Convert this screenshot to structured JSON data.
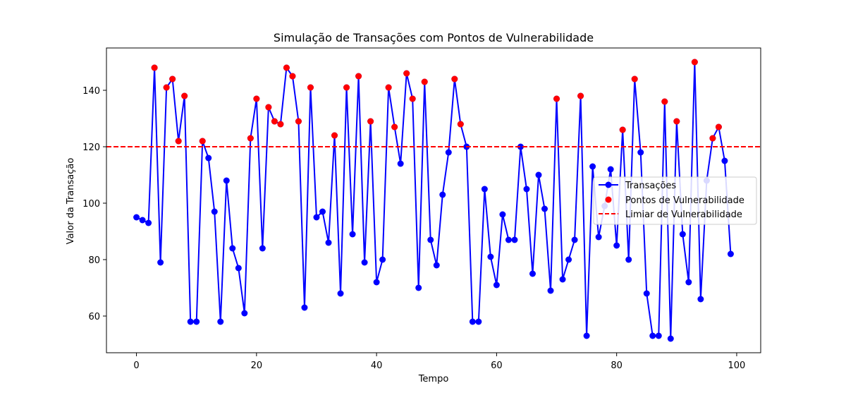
{
  "chart_data": {
    "type": "line",
    "title": "Simulação de Transações com Pontos de Vulnerabilidade",
    "xlabel": "Tempo",
    "ylabel": "Valor da Transação",
    "xlim": [
      -5,
      104
    ],
    "ylim": [
      47,
      155
    ],
    "x_ticks": [
      0,
      20,
      40,
      60,
      80,
      100
    ],
    "y_ticks": [
      60,
      80,
      100,
      120,
      140
    ],
    "grid": false,
    "legend_position": "center-right",
    "threshold": 120,
    "colors": {
      "line": "#0000ff",
      "points": "#ff0000",
      "threshold": "#ff0000"
    },
    "x": [
      0,
      1,
      2,
      3,
      4,
      5,
      6,
      7,
      8,
      9,
      10,
      11,
      12,
      13,
      14,
      15,
      16,
      17,
      18,
      19,
      20,
      21,
      22,
      23,
      24,
      25,
      26,
      27,
      28,
      29,
      30,
      31,
      32,
      33,
      34,
      35,
      36,
      37,
      38,
      39,
      40,
      41,
      42,
      43,
      44,
      45,
      46,
      47,
      48,
      49,
      50,
      51,
      52,
      53,
      54,
      55,
      56,
      57,
      58,
      59,
      60,
      61,
      62,
      63,
      64,
      65,
      66,
      67,
      68,
      69,
      70,
      71,
      72,
      73,
      74,
      75,
      76,
      77,
      78,
      79,
      80,
      81,
      82,
      83,
      84,
      85,
      86,
      87,
      88,
      89,
      90,
      91,
      92,
      93,
      94,
      95,
      96,
      97,
      98,
      99
    ],
    "series": [
      {
        "name": "Transações",
        "style": "line-marker",
        "values": [
          95,
          94,
          93,
          148,
          79,
          141,
          144,
          122,
          138,
          58,
          58,
          122,
          116,
          97,
          58,
          108,
          84,
          77,
          61,
          123,
          137,
          84,
          134,
          129,
          128,
          148,
          145,
          129,
          63,
          141,
          95,
          97,
          86,
          124,
          68,
          141,
          89,
          145,
          79,
          129,
          72,
          80,
          141,
          127,
          114,
          146,
          137,
          70,
          143,
          87,
          78,
          103,
          118,
          144,
          128,
          120,
          58,
          58,
          105,
          81,
          71,
          96,
          87,
          87,
          120,
          105,
          75,
          110,
          98,
          69,
          137,
          73,
          80,
          87,
          138,
          53,
          113,
          88,
          99,
          112,
          85,
          126,
          80,
          144,
          118,
          68,
          53,
          53,
          136,
          52,
          129,
          89,
          72,
          150,
          66,
          108,
          123,
          127,
          115,
          82
        ]
      },
      {
        "name": "Pontos de Vulnerabilidade",
        "style": "marker",
        "x": [
          3,
          5,
          6,
          7,
          8,
          11,
          19,
          20,
          22,
          23,
          24,
          25,
          26,
          27,
          29,
          33,
          35,
          37,
          39,
          42,
          43,
          45,
          46,
          48,
          53,
          54,
          70,
          74,
          81,
          83,
          88,
          90,
          93,
          96,
          97
        ],
        "values": [
          148,
          141,
          144,
          122,
          138,
          122,
          123,
          137,
          134,
          129,
          128,
          148,
          145,
          129,
          141,
          124,
          141,
          145,
          129,
          141,
          127,
          146,
          137,
          143,
          144,
          128,
          137,
          138,
          126,
          144,
          136,
          129,
          150,
          123,
          127
        ]
      },
      {
        "name": "Limiar de Vulnerabilidade",
        "style": "dashed-line",
        "value": 120
      }
    ]
  }
}
